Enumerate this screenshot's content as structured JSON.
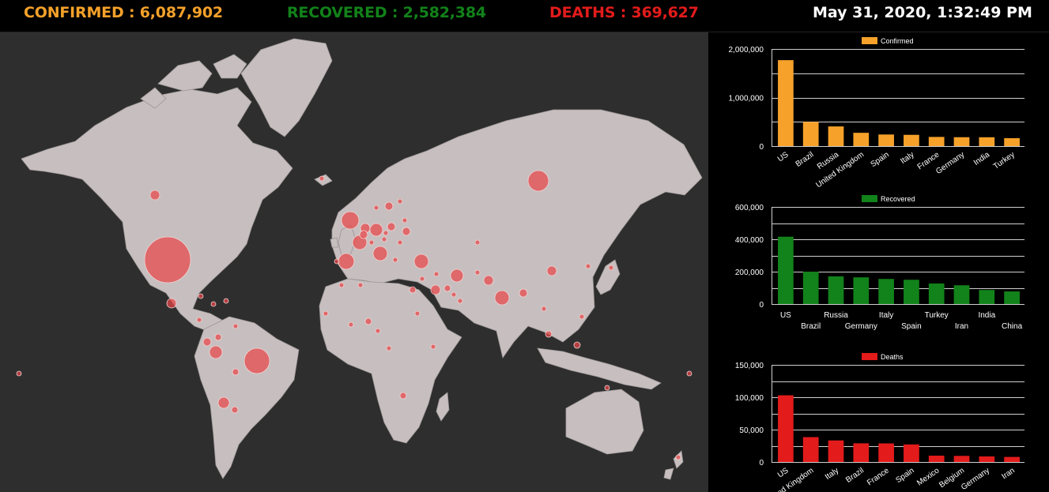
{
  "header": {
    "confirmed_label": "CONFIRMED : 6,087,902",
    "recovered_label": "RECOVERED : 2,582,384",
    "deaths_label": "DEATHS : 369,627",
    "timestamp": "May 31, 2020, 1:32:49 PM"
  },
  "colors": {
    "confirmed": "#f5a12a",
    "recovered": "#12821a",
    "deaths": "#e31b1b",
    "map_land": "#c7bfbf",
    "map_bubble": "#e8464a"
  },
  "chart_data": [
    {
      "type": "bar",
      "legend": "Confirmed",
      "legend_position": "top-center",
      "color": "#f5a12a",
      "categories": [
        "US",
        "Brazil",
        "Russia",
        "United Kingdom",
        "Spain",
        "Italy",
        "France",
        "Germany",
        "India",
        "Turkey"
      ],
      "tick_labels": [
        "US",
        "Brazil",
        "Russia",
        "United Kingdom",
        "Spain",
        "Italy",
        "France",
        "Germany",
        "India",
        "Turkey"
      ],
      "label_style": "rotated",
      "values": [
        1770000,
        498000,
        405000,
        274000,
        239000,
        232000,
        189000,
        183000,
        182000,
        163000
      ],
      "ylim": [
        0,
        2000000
      ],
      "yticks": [
        "0",
        "1,000,000",
        "2,000,000"
      ],
      "grid": true
    },
    {
      "type": "bar",
      "legend": "Recovered",
      "legend_position": "top-center",
      "color": "#12821a",
      "categories": [
        "US",
        "Brazil",
        "Russia",
        "Germany",
        "Italy",
        "Spain",
        "Turkey",
        "Iran",
        "India",
        "China"
      ],
      "tick_labels": [
        "US",
        "Brazil",
        "Russia",
        "Germany",
        "Italy",
        "Spain",
        "Turkey",
        "Iran",
        "India",
        "China"
      ],
      "label_style": "staggered",
      "values": [
        416000,
        200000,
        171000,
        165000,
        155000,
        150000,
        127000,
        116000,
        87000,
        78000
      ],
      "ylim": [
        0,
        600000
      ],
      "yticks": [
        "0",
        "200,000",
        "400,000",
        "600,000"
      ],
      "grid": true
    },
    {
      "type": "bar",
      "legend": "Deaths",
      "legend_position": "top-center",
      "color": "#e31b1b",
      "categories": [
        "US",
        "United Kingdom",
        "Italy",
        "Brazil",
        "France",
        "Spain",
        "Mexico",
        "Belgium",
        "Germany",
        "Iran"
      ],
      "tick_labels": [
        "US",
        "ited Kingdom",
        "Italy",
        "Brazil",
        "France",
        "Spain",
        "Mexico",
        "Belgium",
        "Germany",
        "Iran"
      ],
      "label_style": "rotated",
      "values": [
        103000,
        38400,
        33300,
        28800,
        28700,
        27100,
        9780,
        9450,
        8600,
        7800
      ],
      "ylim": [
        0,
        150000
      ],
      "yticks": [
        "0",
        "50,000",
        "100,000",
        "150,000"
      ],
      "grid": true
    }
  ]
}
